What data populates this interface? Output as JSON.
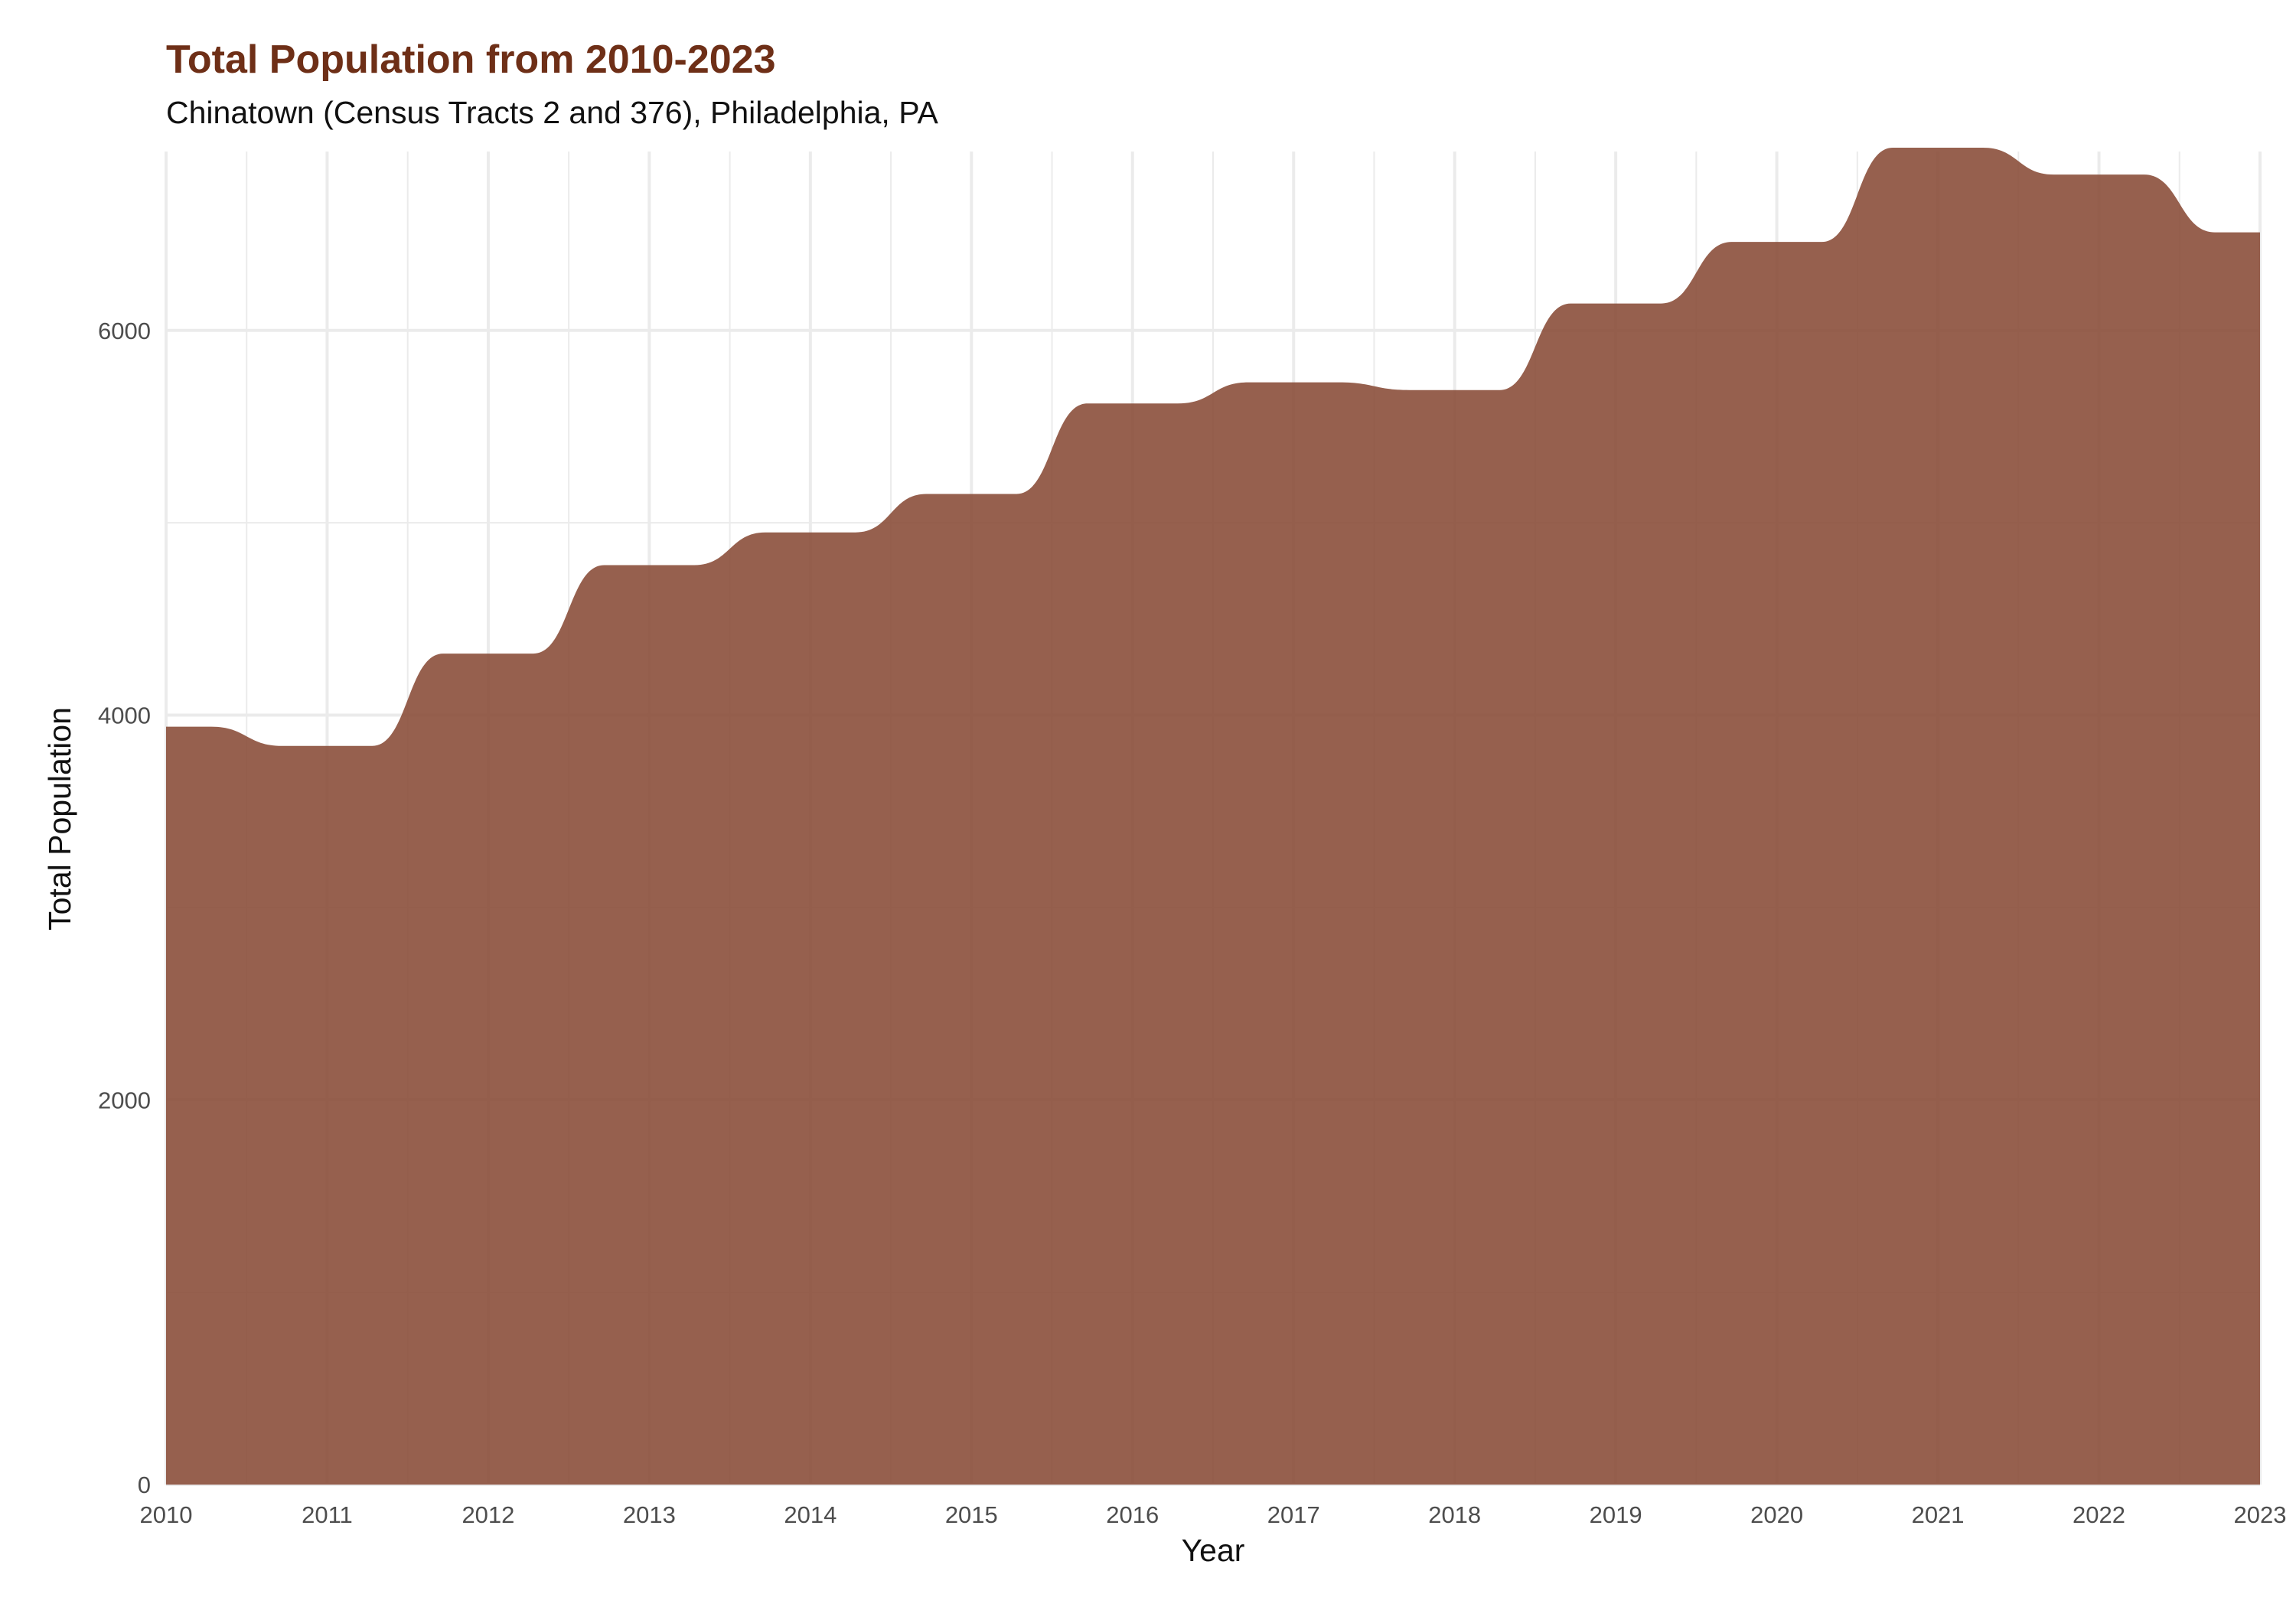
{
  "chart_data": {
    "type": "area",
    "title": "Total Population from 2010-2023",
    "subtitle": "Chinatown (Census Tracts 2 and 376), Philadelphia, PA",
    "xlabel": "Year",
    "ylabel": "Total Population",
    "x": [
      2010,
      2011,
      2012,
      2013,
      2014,
      2015,
      2016,
      2017,
      2018,
      2019,
      2020,
      2021,
      2022,
      2023
    ],
    "values": [
      3940,
      3840,
      4320,
      4780,
      4950,
      5150,
      5620,
      5730,
      5690,
      6140,
      6460,
      6950,
      6810,
      6510
    ],
    "xlim": [
      2010,
      2023
    ],
    "ylim": [
      0,
      6930
    ],
    "x_ticks": [
      "2010",
      "2011",
      "2012",
      "2013",
      "2014",
      "2015",
      "2016",
      "2017",
      "2018",
      "2019",
      "2020",
      "2021",
      "2022",
      "2023"
    ],
    "y_ticks": [
      "0",
      "2000",
      "4000",
      "6000"
    ],
    "grid": true,
    "legend": "none",
    "fill_color": "#8b4f3b",
    "fill_opacity": 0.9,
    "grid_color": "#ebebeb"
  }
}
